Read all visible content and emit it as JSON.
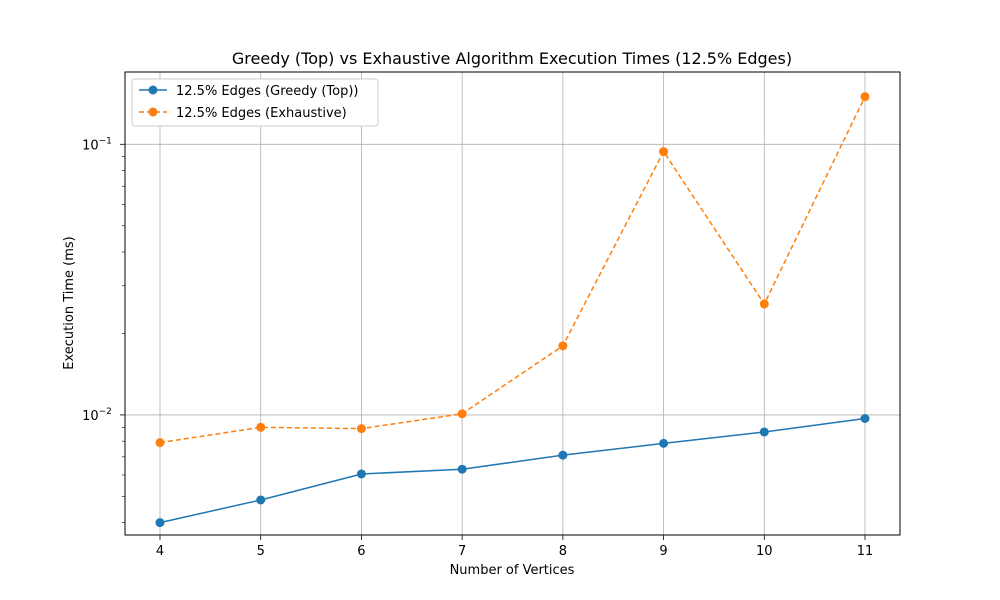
{
  "chart_data": {
    "type": "line",
    "title": "Greedy (Top) vs Exhaustive Algorithm Execution Times (12.5% Edges)",
    "xlabel": "Number of Vertices",
    "ylabel": "Execution Time (ms)",
    "x": [
      4,
      5,
      6,
      7,
      8,
      9,
      10,
      11
    ],
    "x_tick_labels": [
      "4",
      "5",
      "6",
      "7",
      "8",
      "9",
      "10",
      "11"
    ],
    "y_scale": "log",
    "ylim": [
      0.0036,
      0.185
    ],
    "y_tick_labels": [
      {
        "value": 0.1,
        "base": "10",
        "exp": "−1"
      },
      {
        "value": 0.01,
        "base": "10",
        "exp": "−2"
      }
    ],
    "grid": true,
    "legend_position": "top-left",
    "series": [
      {
        "name": "12.5% Edges (Greedy (Top))",
        "color": "#1f77b4",
        "line_style": "solid",
        "marker": "circle",
        "values": [
          0.004,
          0.00485,
          0.00605,
          0.0063,
          0.0071,
          0.00785,
          0.00865,
          0.0097
        ]
      },
      {
        "name": "12.5% Edges (Exhaustive)",
        "color": "#ff7f0e",
        "line_style": "dashed",
        "marker": "circle",
        "values": [
          0.0079,
          0.009,
          0.0089,
          0.0101,
          0.018,
          0.094,
          0.0257,
          0.15
        ]
      }
    ]
  }
}
